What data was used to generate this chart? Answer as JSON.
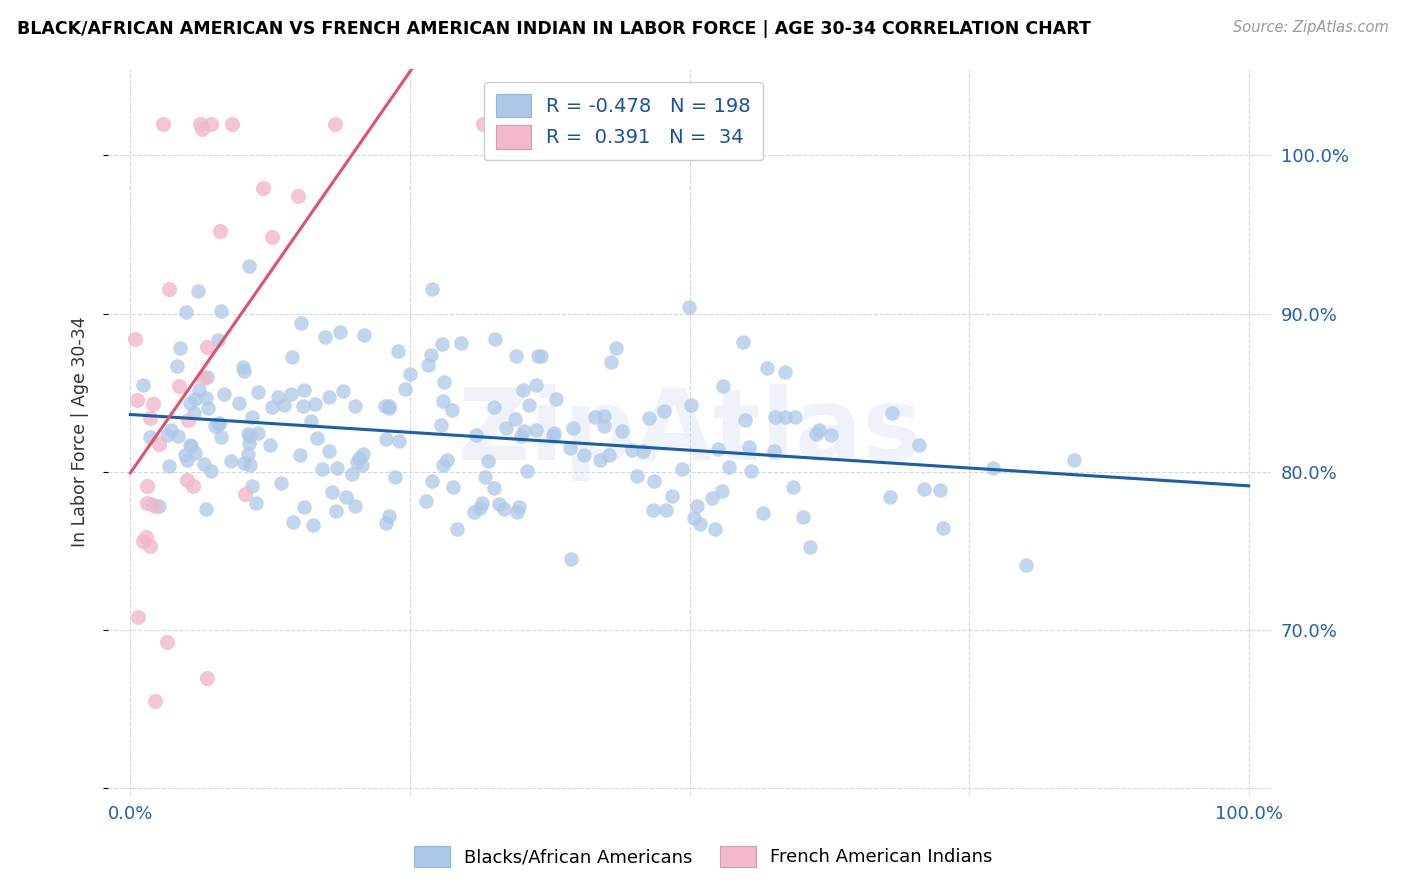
{
  "title": "BLACK/AFRICAN AMERICAN VS FRENCH AMERICAN INDIAN IN LABOR FORCE | AGE 30-34 CORRELATION CHART",
  "source": "Source: ZipAtlas.com",
  "ylabel": "In Labor Force | Age 30-34",
  "yticks": [
    "70.0%",
    "80.0%",
    "90.0%",
    "100.0%"
  ],
  "ytick_vals": [
    0.7,
    0.8,
    0.9,
    1.0
  ],
  "blue_R": -0.478,
  "blue_N": 198,
  "pink_R": 0.391,
  "pink_N": 34,
  "blue_color": "#adc8e8",
  "pink_color": "#f2b8cb",
  "blue_line_color": "#1a5fa8",
  "pink_line_color": "#e05070",
  "blue_legend_label": "Blacks/African Americans",
  "pink_legend_label": "French American Indians",
  "watermark": "ZipAtlas",
  "xmin": -0.02,
  "xmax": 1.02,
  "ymin": 0.595,
  "ymax": 1.055
}
